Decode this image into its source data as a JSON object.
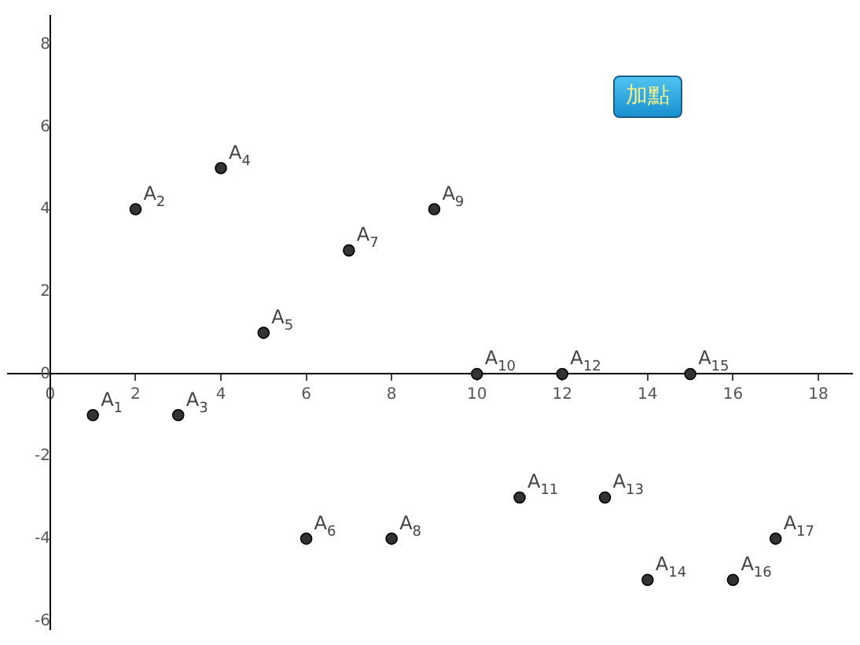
{
  "chart_data": {
    "type": "scatter",
    "x": [
      1,
      2,
      3,
      4,
      5,
      6,
      7,
      8,
      9,
      10,
      11,
      12,
      13,
      14,
      15,
      16,
      17
    ],
    "series": [
      {
        "color": "#333333",
        "values": [
          -1,
          4,
          -1,
          5,
          1,
          -4,
          3,
          -4,
          4,
          0,
          -3,
          0,
          -3,
          -5,
          0,
          -5,
          -4
        ]
      }
    ],
    "xlim": [
      -1,
      18.8
    ],
    "ylim": [
      -6.2,
      8.7
    ],
    "xticks": [
      0,
      2,
      4,
      6,
      8,
      10,
      12,
      14,
      16,
      18
    ],
    "yticks": [
      -6,
      -4,
      -2,
      0,
      2,
      4,
      6,
      8
    ],
    "grid": false,
    "legend": false,
    "marker": "circle",
    "annotations": [
      {
        "text": "A$_{1}$",
        "x": 1,
        "y": -1
      },
      {
        "text": "A$_{2}$",
        "x": 2,
        "y": 4
      },
      {
        "text": "A$_{3}$",
        "x": 3,
        "y": -1
      },
      {
        "text": "A$_{4}$",
        "x": 4,
        "y": 5
      },
      {
        "text": "A$_{5}$",
        "x": 5,
        "y": 1
      },
      {
        "text": "A$_{6}$",
        "x": 6,
        "y": -4
      },
      {
        "text": "A$_{7}$",
        "x": 7,
        "y": 3
      },
      {
        "text": "A$_{8}$",
        "x": 8,
        "y": -4
      },
      {
        "text": "A$_{9}$",
        "x": 9,
        "y": 4
      },
      {
        "text": "A$_{10}$",
        "x": 10,
        "y": 0
      },
      {
        "text": "A$_{11}$",
        "x": 11,
        "y": -3
      },
      {
        "text": "A$_{12}$",
        "x": 12,
        "y": 0
      },
      {
        "text": "A$_{13}$",
        "x": 13,
        "y": -3
      },
      {
        "text": "A$_{14}$",
        "x": 14,
        "y": -5
      },
      {
        "text": "A$_{15}$",
        "x": 15,
        "y": 0
      },
      {
        "text": "A$_{16}$",
        "x": 16,
        "y": -5
      },
      {
        "text": "A$_{17}$",
        "x": 17,
        "y": -4
      },
      "加點"
    ]
  }
}
